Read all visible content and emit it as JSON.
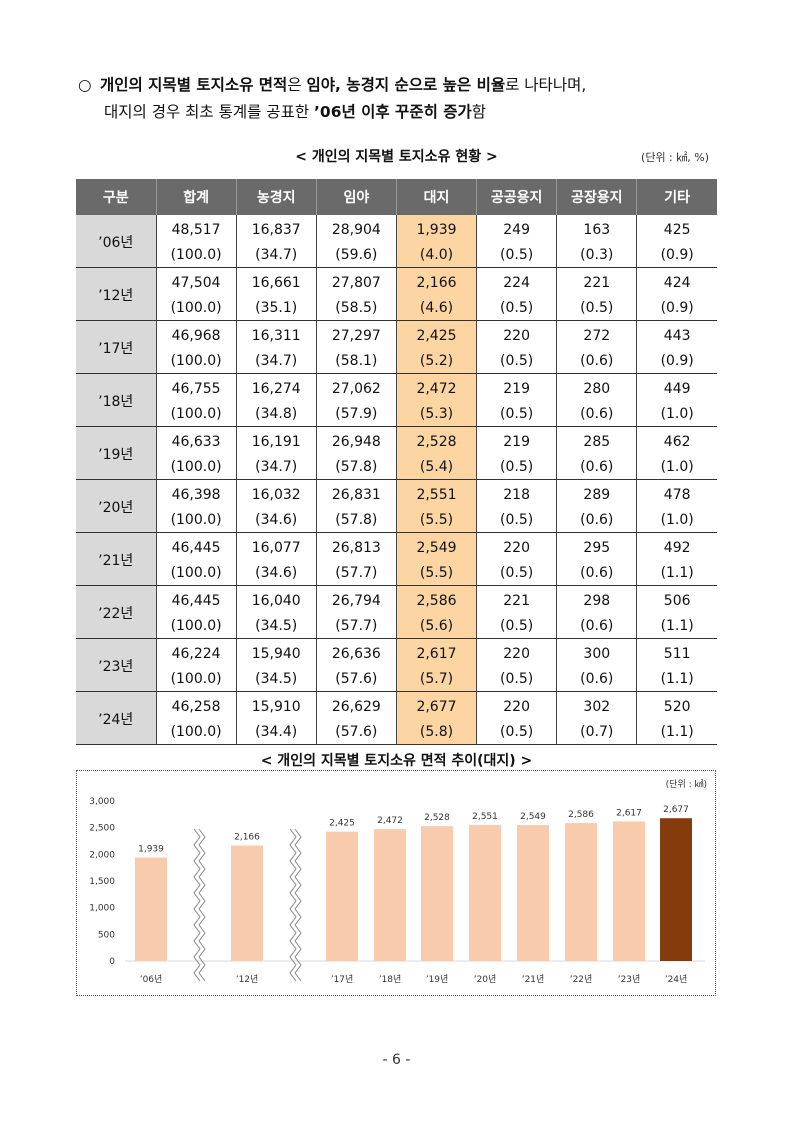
{
  "intro": {
    "bullet": "○",
    "line1": [
      {
        "t": "개인의 지목별 토지소유 면적",
        "b": true
      },
      {
        "t": "은 ",
        "b": false
      },
      {
        "t": "임야, 농경지 순으로 높은 비율",
        "b": true
      },
      {
        "t": "로 나타나며,",
        "b": false
      }
    ],
    "line2": [
      {
        "t": "대지의 경우 최초 통계를 공표한 ",
        "b": false
      },
      {
        "t": "’06년 이후 꾸준히 증가",
        "b": true
      },
      {
        "t": "함",
        "b": false
      }
    ]
  },
  "table": {
    "title": "< 개인의 지목별 토지소유 현황 >",
    "unit": "(단위 : ㎢, %)",
    "headers": [
      "구분",
      "합계",
      "농경지",
      "임야",
      "대지",
      "공공용지",
      "공장용지",
      "기타"
    ],
    "rows": [
      {
        "year": "’06년",
        "values": [
          "48,517",
          "16,837",
          "28,904",
          "1,939",
          "249",
          "163",
          "425"
        ],
        "pct": [
          "(100.0)",
          "(34.7)",
          "(59.6)",
          "(4.0)",
          "(0.5)",
          "(0.3)",
          "(0.9)"
        ]
      },
      {
        "year": "’12년",
        "values": [
          "47,504",
          "16,661",
          "27,807",
          "2,166",
          "224",
          "221",
          "424"
        ],
        "pct": [
          "(100.0)",
          "(35.1)",
          "(58.5)",
          "(4.6)",
          "(0.5)",
          "(0.5)",
          "(0.9)"
        ]
      },
      {
        "year": "’17년",
        "values": [
          "46,968",
          "16,311",
          "27,297",
          "2,425",
          "220",
          "272",
          "443"
        ],
        "pct": [
          "(100.0)",
          "(34.7)",
          "(58.1)",
          "(5.2)",
          "(0.5)",
          "(0.6)",
          "(0.9)"
        ]
      },
      {
        "year": "’18년",
        "values": [
          "46,755",
          "16,274",
          "27,062",
          "2,472",
          "219",
          "280",
          "449"
        ],
        "pct": [
          "(100.0)",
          "(34.8)",
          "(57.9)",
          "(5.3)",
          "(0.5)",
          "(0.6)",
          "(1.0)"
        ]
      },
      {
        "year": "’19년",
        "values": [
          "46,633",
          "16,191",
          "26,948",
          "2,528",
          "219",
          "285",
          "462"
        ],
        "pct": [
          "(100.0)",
          "(34.7)",
          "(57.8)",
          "(5.4)",
          "(0.5)",
          "(0.6)",
          "(1.0)"
        ]
      },
      {
        "year": "’20년",
        "values": [
          "46,398",
          "16,032",
          "26,831",
          "2,551",
          "218",
          "289",
          "478"
        ],
        "pct": [
          "(100.0)",
          "(34.6)",
          "(57.8)",
          "(5.5)",
          "(0.5)",
          "(0.6)",
          "(1.0)"
        ]
      },
      {
        "year": "’21년",
        "values": [
          "46,445",
          "16,077",
          "26,813",
          "2,549",
          "220",
          "295",
          "492"
        ],
        "pct": [
          "(100.0)",
          "(34.6)",
          "(57.7)",
          "(5.5)",
          "(0.5)",
          "(0.6)",
          "(1.1)"
        ]
      },
      {
        "year": "’22년",
        "values": [
          "46,445",
          "16,040",
          "26,794",
          "2,586",
          "221",
          "298",
          "506"
        ],
        "pct": [
          "(100.0)",
          "(34.5)",
          "(57.7)",
          "(5.6)",
          "(0.5)",
          "(0.6)",
          "(1.1)"
        ]
      },
      {
        "year": "’23년",
        "values": [
          "46,224",
          "15,940",
          "26,636",
          "2,617",
          "220",
          "300",
          "511"
        ],
        "pct": [
          "(100.0)",
          "(34.5)",
          "(57.6)",
          "(5.7)",
          "(0.5)",
          "(0.6)",
          "(1.1)"
        ]
      },
      {
        "year": "’24년",
        "values": [
          "46,258",
          "15,910",
          "26,629",
          "2,677",
          "220",
          "302",
          "520"
        ],
        "pct": [
          "(100.0)",
          "(34.4)",
          "(57.6)",
          "(5.8)",
          "(0.5)",
          "(0.7)",
          "(1.1)"
        ]
      }
    ],
    "highlight_color": "#fcd5a3"
  },
  "chart_data": {
    "type": "bar",
    "title": "< 개인의 지목별 토지소유 면적 추이(대지) >",
    "unit": "(단위 : ㎢)",
    "categories": [
      "’06년",
      "’12년",
      "’17년",
      "’18년",
      "’19년",
      "’20년",
      "’21년",
      "’22년",
      "’23년",
      "’24년"
    ],
    "values": [
      1939,
      2166,
      2425,
      2472,
      2528,
      2551,
      2549,
      2586,
      2617,
      2677
    ],
    "value_labels": [
      "1,939",
      "2,166",
      "2,425",
      "2,472",
      "2,528",
      "2,551",
      "2,549",
      "2,586",
      "2,617",
      "2,677"
    ],
    "ylim": [
      0,
      3000
    ],
    "yticks": [
      0,
      500,
      1000,
      1500,
      2000,
      2500,
      3000
    ],
    "ytick_labels": [
      "0",
      "500",
      "1,000",
      "1,500",
      "2,000",
      "2,500",
      "3,000"
    ],
    "axis_breaks_after": [
      "’06년",
      "’12년"
    ],
    "bar_color": "#f8cbad",
    "highlight_color": "#843c0c",
    "highlight_category": "’24년",
    "grid": false
  },
  "footer": {
    "page": "- 6 -"
  }
}
